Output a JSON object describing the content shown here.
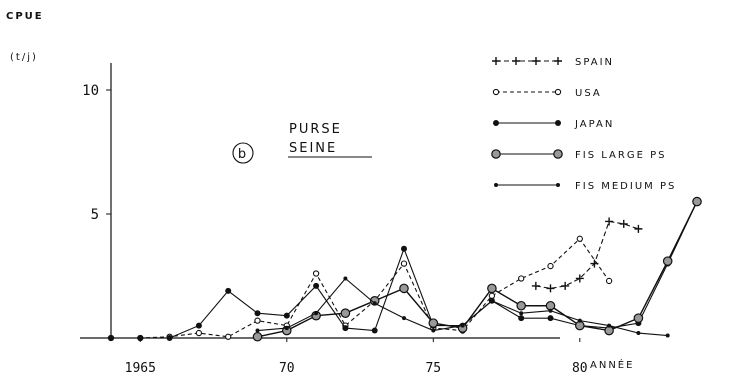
{
  "chart_data": {
    "type": "line",
    "ylabel": "CPUE",
    "yunit": "(t/j)",
    "xlabel": "ANNÉE",
    "annotation_letter": "b",
    "annotation_line1": "PURSE",
    "annotation_line2": "SEINE",
    "xlim": [
      1964,
      1984.5
    ],
    "ylim": [
      0,
      11
    ],
    "xticks": [
      1965,
      1970,
      1975,
      1980
    ],
    "xtick_labels": [
      "1965",
      "70",
      "75",
      "80"
    ],
    "yticks": [
      5,
      10
    ],
    "ytick_labels": [
      "5",
      "10"
    ],
    "legend_position": "top-right",
    "series": [
      {
        "name": "SPAIN",
        "marker": "plus",
        "dash": "5,3",
        "x": [
          1978.5,
          1979,
          1979.5,
          1980,
          1980.5,
          1981,
          1981.5,
          1982
        ],
        "y": [
          2.1,
          2.0,
          2.1,
          2.4,
          3.0,
          4.7,
          4.6,
          4.4
        ]
      },
      {
        "name": "USA",
        "marker": "open",
        "dash": "4,3",
        "x": [
          1964,
          1965,
          1966,
          1967,
          1968,
          1969,
          1970,
          1971,
          1972,
          1973,
          1974,
          1975,
          1976,
          1977,
          1978,
          1979,
          1980,
          1981
        ],
        "y": [
          0,
          0,
          0.05,
          0.2,
          0.05,
          0.7,
          0.5,
          2.6,
          0.5,
          1.5,
          3.0,
          0.4,
          0.3,
          1.7,
          2.4,
          2.9,
          4.0,
          2.3
        ]
      },
      {
        "name": "JAPAN",
        "marker": "filled",
        "dash": "",
        "x": [
          1964,
          1965,
          1966,
          1967,
          1968,
          1969,
          1970,
          1971,
          1972,
          1973,
          1974,
          1975,
          1976,
          1977,
          1978,
          1979,
          1980,
          1981,
          1982,
          1983,
          1984
        ],
        "y": [
          0,
          0,
          0,
          0.5,
          1.9,
          1.0,
          0.9,
          2.1,
          0.4,
          0.3,
          3.6,
          0.5,
          0.5,
          1.5,
          0.8,
          0.8,
          0.5,
          0.4,
          0.6,
          3.0,
          5.5
        ]
      },
      {
        "name": "FIS LARGE PS",
        "marker": "large",
        "dash": "",
        "x": [
          1969,
          1970,
          1971,
          1972,
          1973,
          1974,
          1975,
          1976,
          1977,
          1978,
          1979,
          1980,
          1981,
          1982,
          1983,
          1984
        ],
        "y": [
          0.05,
          0.3,
          0.9,
          1.0,
          1.5,
          2.0,
          0.6,
          0.4,
          2.0,
          1.3,
          1.3,
          0.5,
          0.3,
          0.8,
          3.1,
          5.5
        ]
      },
      {
        "name": "FIS MEDIUM PS",
        "marker": "small",
        "dash": "",
        "x": [
          1969,
          1970,
          1971,
          1972,
          1973,
          1974,
          1975,
          1976,
          1977,
          1978,
          1979,
          1980,
          1981,
          1982,
          1983
        ],
        "y": [
          0.3,
          0.4,
          1.0,
          2.4,
          1.4,
          0.8,
          0.3,
          0.5,
          1.5,
          1.0,
          1.1,
          0.7,
          0.5,
          0.2,
          0.1
        ]
      }
    ]
  }
}
